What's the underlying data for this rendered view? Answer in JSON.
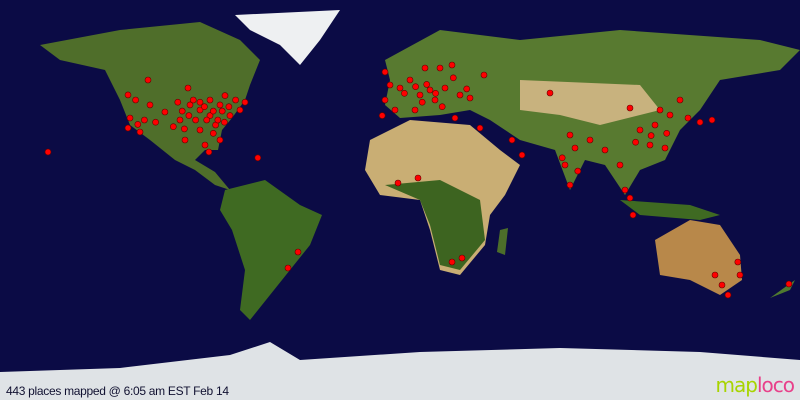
{
  "caption": "443 places mapped @ 6:05 am EST Feb 14",
  "logo": {
    "part1": "map",
    "part2": "loco"
  },
  "colors": {
    "ocean": "#0b0b45",
    "marker": "#ff0000",
    "land": "#5a7a2a",
    "desert": "#c9b07a",
    "ice": "#e8ecef"
  },
  "projection": "equirectangular",
  "markers_lonlat": [
    [
      -113.4,
      54
    ],
    [
      -122.4,
      47.3
    ],
    [
      -119,
      45
    ],
    [
      -121.5,
      36.9
    ],
    [
      -122.4,
      32.4
    ],
    [
      -117,
      30.6
    ],
    [
      -112.5,
      42.8
    ],
    [
      -110,
      35
    ],
    [
      -105.8,
      39.6
    ],
    [
      -95.4,
      50.4
    ],
    [
      -94.5,
      42.8
    ],
    [
      -90,
      40.5
    ],
    [
      -85.5,
      45
    ],
    [
      -81,
      42.8
    ],
    [
      -74,
      45
    ],
    [
      -69.75,
      44
    ],
    [
      -76.5,
      38
    ],
    [
      -83,
      33.75
    ],
    [
      -90,
      31.5
    ],
    [
      -96.75,
      27
    ],
    [
      -87.75,
      24.75
    ],
    [
      -81,
      27
    ],
    [
      -99,
      36
    ],
    [
      -92,
      36
    ],
    [
      -85.5,
      38
    ],
    [
      -72,
      40.5
    ],
    [
      -78.75,
      47
    ],
    [
      -64,
      19
    ],
    [
      -86,
      21.6
    ],
    [
      -158.4,
      21.6
    ],
    [
      -88,
      42
    ],
    [
      -84,
      40
    ],
    [
      -80,
      40
    ],
    [
      -87,
      36
    ],
    [
      -97,
      32
    ],
    [
      -95,
      38
    ],
    [
      -102,
      33
    ],
    [
      -79,
      35
    ],
    [
      -84,
      30
    ],
    [
      -82,
      36
    ],
    [
      -77,
      42
    ],
    [
      -90,
      44
    ],
    [
      -93,
      45
    ],
    [
      -98,
      40
    ],
    [
      -100,
      44
    ],
    [
      -118,
      34
    ],
    [
      -115,
      36
    ],
    [
      -45.9,
      -23.4
    ],
    [
      -50.4,
      -30.6
    ],
    [
      -6.75,
      57.6
    ],
    [
      -4.5,
      51.75
    ],
    [
      0,
      50.4
    ],
    [
      4.5,
      54
    ],
    [
      11.25,
      59.4
    ],
    [
      18,
      59.4
    ],
    [
      23.4,
      60.75
    ],
    [
      37.8,
      56.25
    ],
    [
      9,
      47.25
    ],
    [
      13.5,
      49.5
    ],
    [
      20.25,
      50.4
    ],
    [
      27,
      47.25
    ],
    [
      15.75,
      45
    ],
    [
      6.75,
      40.5
    ],
    [
      -2.25,
      40.5
    ],
    [
      -6.75,
      45
    ],
    [
      31.5,
      45.9
    ],
    [
      24.75,
      36.9
    ],
    [
      36,
      32.4
    ],
    [
      67.5,
      48.15
    ],
    [
      2,
      48
    ],
    [
      7,
      51
    ],
    [
      12,
      52
    ],
    [
      16,
      48
    ],
    [
      19,
      42
    ],
    [
      30,
      50
    ],
    [
      24,
      55
    ],
    [
      -8,
      38
    ],
    [
      10,
      44
    ],
    [
      50.4,
      27
    ],
    [
      54.9,
      20.25
    ],
    [
      76.5,
      29.25
    ],
    [
      78.75,
      23.4
    ],
    [
      74.25,
      15.75
    ],
    [
      76.5,
      6.75
    ],
    [
      85.5,
      27
    ],
    [
      92.25,
      22.5
    ],
    [
      99,
      15.75
    ],
    [
      101.25,
      4.5
    ],
    [
      103.5,
      0.9
    ],
    [
      104.85,
      -6.75
    ],
    [
      108,
      31.5
    ],
    [
      114.75,
      33.75
    ],
    [
      121.5,
      38.25
    ],
    [
      126,
      45
    ],
    [
      129.6,
      36.9
    ],
    [
      135,
      35
    ],
    [
      140.4,
      36
    ],
    [
      112.5,
      24.75
    ],
    [
      119.25,
      23.4
    ],
    [
      103.5,
      41.4
    ],
    [
      117,
      40.5
    ],
    [
      120,
      30
    ],
    [
      113,
      29
    ],
    [
      106,
      26
    ],
    [
      73,
      19
    ],
    [
      80,
      13
    ],
    [
      -0.9,
      7.65
    ],
    [
      8.1,
      9.9
    ],
    [
      23.4,
      -27.9
    ],
    [
      27.9,
      -26.1
    ],
    [
      141.75,
      -33.75
    ],
    [
      144.9,
      -38.25
    ],
    [
      147.6,
      -42.75
    ],
    [
      152,
      -27.9
    ],
    [
      153,
      -33.75
    ],
    [
      175,
      -37.8
    ]
  ]
}
